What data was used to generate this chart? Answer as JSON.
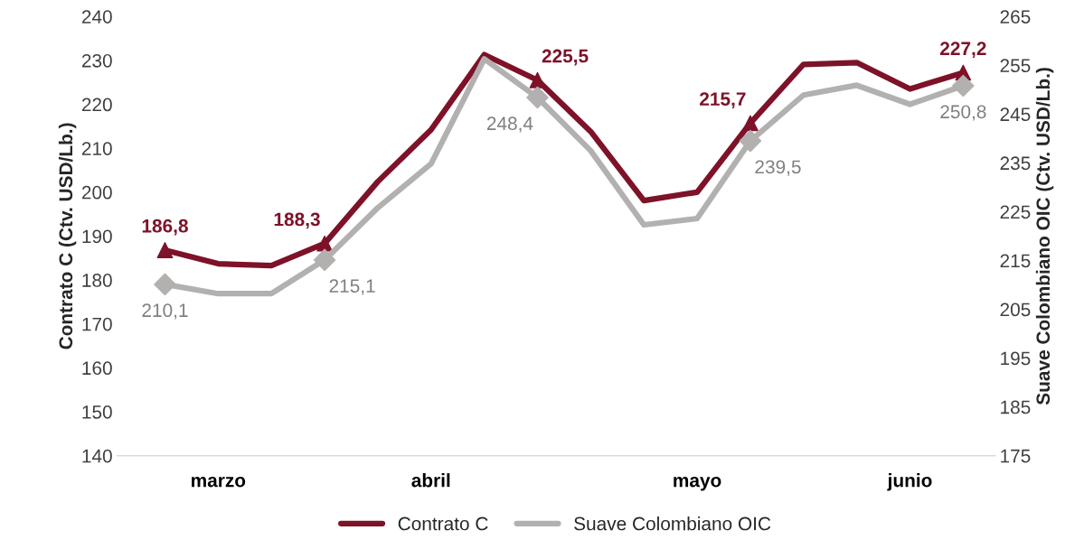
{
  "chart_data": {
    "type": "line",
    "categories": [
      null,
      "marzo",
      null,
      null,
      null,
      "abril",
      null,
      null,
      null,
      null,
      "mayo",
      null,
      null,
      null,
      "junio",
      null
    ],
    "ylabel": "Contrato C (Ctv. USD/Lb.)",
    "y2label": "Suave Colombiano OIC (Ctv. USD/Lb.)",
    "ylim": [
      140,
      240
    ],
    "yticks": [
      140,
      150,
      160,
      170,
      180,
      190,
      200,
      210,
      220,
      230,
      240
    ],
    "y2lim": [
      175,
      265
    ],
    "y2ticks": [
      175,
      185,
      195,
      205,
      215,
      225,
      235,
      245,
      255,
      265
    ],
    "grid": false,
    "legend": "bottom",
    "line_style": "solid",
    "series": [
      {
        "name": "Contrato C",
        "color": "#7d1228",
        "values": [
          186.8,
          183.7,
          183.3,
          188.3,
          202.4,
          214.2,
          231.3,
          225.5,
          213.8,
          198.1,
          200.0,
          215.7,
          229.1,
          229.5,
          223.5,
          227.2
        ]
      },
      {
        "name": "Suave Colombiano OIC",
        "axis": "y2",
        "color": "#b3b0b0",
        "values": [
          210.1,
          208.2,
          208.2,
          215.1,
          225.8,
          234.8,
          256.3,
          248.4,
          237.5,
          222.3,
          223.6,
          239.5,
          248.9,
          250.9,
          247.0,
          250.8
        ]
      },
      {
        "type": "scatter",
        "marker": "triangle",
        "color": "#7d1228",
        "values": [
          186.8,
          null,
          null,
          188.3,
          null,
          null,
          null,
          225.5,
          null,
          null,
          null,
          215.7,
          null,
          null,
          null,
          227.2
        ],
        "value_labels": [
          "186,8",
          null,
          null,
          "188,3",
          null,
          null,
          null,
          "225,5",
          null,
          null,
          null,
          "215,7",
          null,
          null,
          null,
          "227,2"
        ]
      },
      {
        "type": "scatter",
        "axis": "y2",
        "marker": "diamond",
        "color": "#b3b0b0",
        "values": [
          210.1,
          null,
          null,
          215.1,
          null,
          null,
          null,
          248.4,
          null,
          null,
          null,
          239.5,
          null,
          null,
          null,
          250.8
        ],
        "value_labels": [
          "210,1",
          null,
          null,
          "215,1",
          null,
          null,
          null,
          "248,4",
          null,
          null,
          null,
          "239,5",
          null,
          null,
          null,
          "250,8"
        ]
      }
    ]
  }
}
